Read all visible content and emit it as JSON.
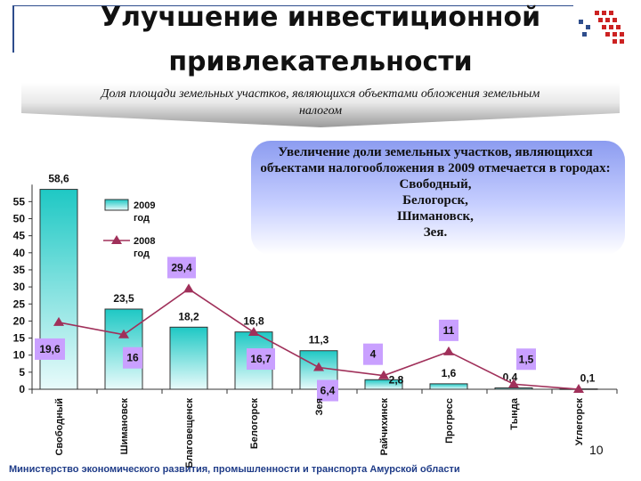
{
  "header": {
    "title_line1": "Улучшение инвестиционной",
    "title_line2": "привлекательности",
    "subtitle_line1": "Доля площади земельных участков, являющихся объектами обложения земельным",
    "subtitle_line2": "налогом"
  },
  "note": {
    "lines": [
      "Увеличение доли земельных участков, являющихся",
      "объектами налогообложения в 2009 отмечается в городах:",
      "Свободный,",
      "Белогорск,",
      "Шимановск,",
      "Зея."
    ]
  },
  "footer": {
    "text": "Министерство экономического развития, промышленности и транспорта Амурской области",
    "page_number": "10"
  },
  "colors": {
    "bar_fill_top": "#1ec8c4",
    "bar_fill_bottom": "#e9fbfb",
    "line": "#a0305a",
    "line_label_bg": "#c9a0ff",
    "axis": "#333333"
  },
  "chart_data": {
    "type": "bar",
    "categories": [
      "Свободный",
      "Шимановск",
      "Благовещенск",
      "Белогорск",
      "Зея",
      "Райчихинск",
      "Прогресс",
      "Тында",
      "Углегорск"
    ],
    "yticks": [
      0,
      5,
      10,
      15,
      20,
      25,
      30,
      35,
      40,
      45,
      50,
      55
    ],
    "ylim": [
      0,
      60
    ],
    "grid": false,
    "legend_position": "top-left",
    "series": [
      {
        "name": "2009 год",
        "kind": "bar",
        "values": [
          58.6,
          23.5,
          18.2,
          16.8,
          11.3,
          2.8,
          1.6,
          0.4,
          0.1
        ],
        "labels": [
          "58,6",
          "23,5",
          "18,2",
          "16,8",
          "11,3",
          "2,8",
          "1,6",
          "0,4",
          "0,1"
        ]
      },
      {
        "name": "2008 год",
        "kind": "line",
        "values": [
          19.6,
          16,
          29.4,
          16.7,
          6.4,
          4,
          11,
          1.5,
          0
        ],
        "labels": [
          "19,6",
          "16",
          "29,4",
          "16,7",
          "6,4",
          "4",
          "11",
          "1,5",
          ""
        ]
      }
    ],
    "legend": [
      {
        "line1": "2009",
        "line2": "год"
      },
      {
        "line1": "2008",
        "line2": "год"
      }
    ]
  }
}
